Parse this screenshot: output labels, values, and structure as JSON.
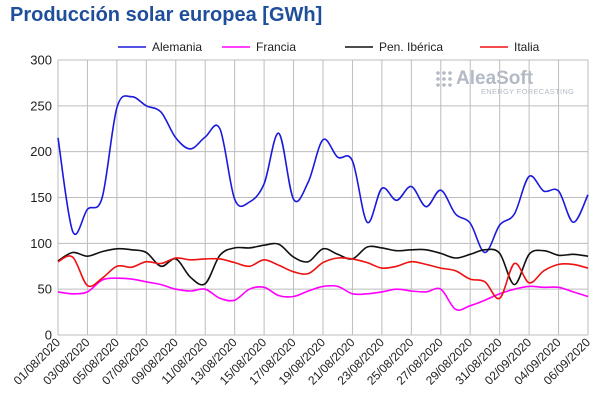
{
  "chart_data": {
    "type": "line",
    "title": "Producción solar europea [GWh]",
    "xlabel": "",
    "ylabel": "",
    "ylim": [
      0,
      300
    ],
    "yticks": [
      0,
      50,
      100,
      150,
      200,
      250,
      300
    ],
    "grid": true,
    "legend_position": "top",
    "x": [
      "01/08/2020",
      "02/08/2020",
      "03/08/2020",
      "04/08/2020",
      "05/08/2020",
      "06/08/2020",
      "07/08/2020",
      "08/08/2020",
      "09/08/2020",
      "10/08/2020",
      "11/08/2020",
      "12/08/2020",
      "13/08/2020",
      "14/08/2020",
      "15/08/2020",
      "16/08/2020",
      "17/08/2020",
      "18/08/2020",
      "19/08/2020",
      "20/08/2020",
      "21/08/2020",
      "22/08/2020",
      "23/08/2020",
      "24/08/2020",
      "25/08/2020",
      "26/08/2020",
      "27/08/2020",
      "28/08/2020",
      "29/08/2020",
      "30/08/2020",
      "31/08/2020",
      "01/09/2020",
      "02/09/2020",
      "03/09/2020",
      "04/09/2020",
      "05/09/2020",
      "06/09/2020"
    ],
    "xtick_labels": [
      "01/08/2020",
      "03/08/2020",
      "05/08/2020",
      "07/08/2020",
      "09/08/2020",
      "11/08/2020",
      "13/08/2020",
      "15/08/2020",
      "17/08/2020",
      "19/08/2020",
      "21/08/2020",
      "23/08/2020",
      "25/08/2020",
      "27/08/2020",
      "29/08/2020",
      "31/08/2020",
      "02/09/2020",
      "04/09/2020",
      "06/09/2020"
    ],
    "series": [
      {
        "name": "Alemania",
        "color": "#1a1adc",
        "values": [
          215,
          113,
          137,
          150,
          248,
          260,
          250,
          243,
          215,
          203,
          216,
          225,
          148,
          145,
          165,
          220,
          148,
          167,
          213,
          194,
          190,
          123,
          160,
          147,
          162,
          140,
          158,
          132,
          122,
          90,
          120,
          132,
          173,
          157,
          157,
          123,
          153
        ]
      },
      {
        "name": "Francia",
        "color": "#ff00ff",
        "values": [
          47,
          45,
          47,
          60,
          62,
          61,
          58,
          55,
          50,
          48,
          50,
          40,
          38,
          50,
          52,
          43,
          42,
          48,
          53,
          53,
          45,
          45,
          47,
          50,
          48,
          47,
          50,
          28,
          32,
          38,
          45,
          50,
          53,
          52,
          52,
          47,
          42
        ]
      },
      {
        "name": "Pen. Ibérica",
        "color": "#111111",
        "values": [
          81,
          90,
          86,
          91,
          94,
          93,
          90,
          75,
          83,
          63,
          56,
          87,
          95,
          95,
          98,
          99,
          85,
          80,
          94,
          88,
          83,
          96,
          95,
          92,
          93,
          93,
          89,
          84,
          88,
          93,
          89,
          55,
          88,
          92,
          87,
          88,
          86
        ]
      },
      {
        "name": "Italia",
        "color": "#ee1111",
        "values": [
          80,
          85,
          54,
          62,
          75,
          74,
          80,
          78,
          84,
          82,
          83,
          83,
          79,
          75,
          82,
          76,
          69,
          67,
          79,
          84,
          83,
          79,
          73,
          75,
          80,
          77,
          73,
          70,
          61,
          58,
          40,
          78,
          57,
          70,
          77,
          77,
          73
        ]
      }
    ]
  },
  "logo": {
    "name": "AleaSoft",
    "tagline": "ENERGY FORECASTING"
  }
}
